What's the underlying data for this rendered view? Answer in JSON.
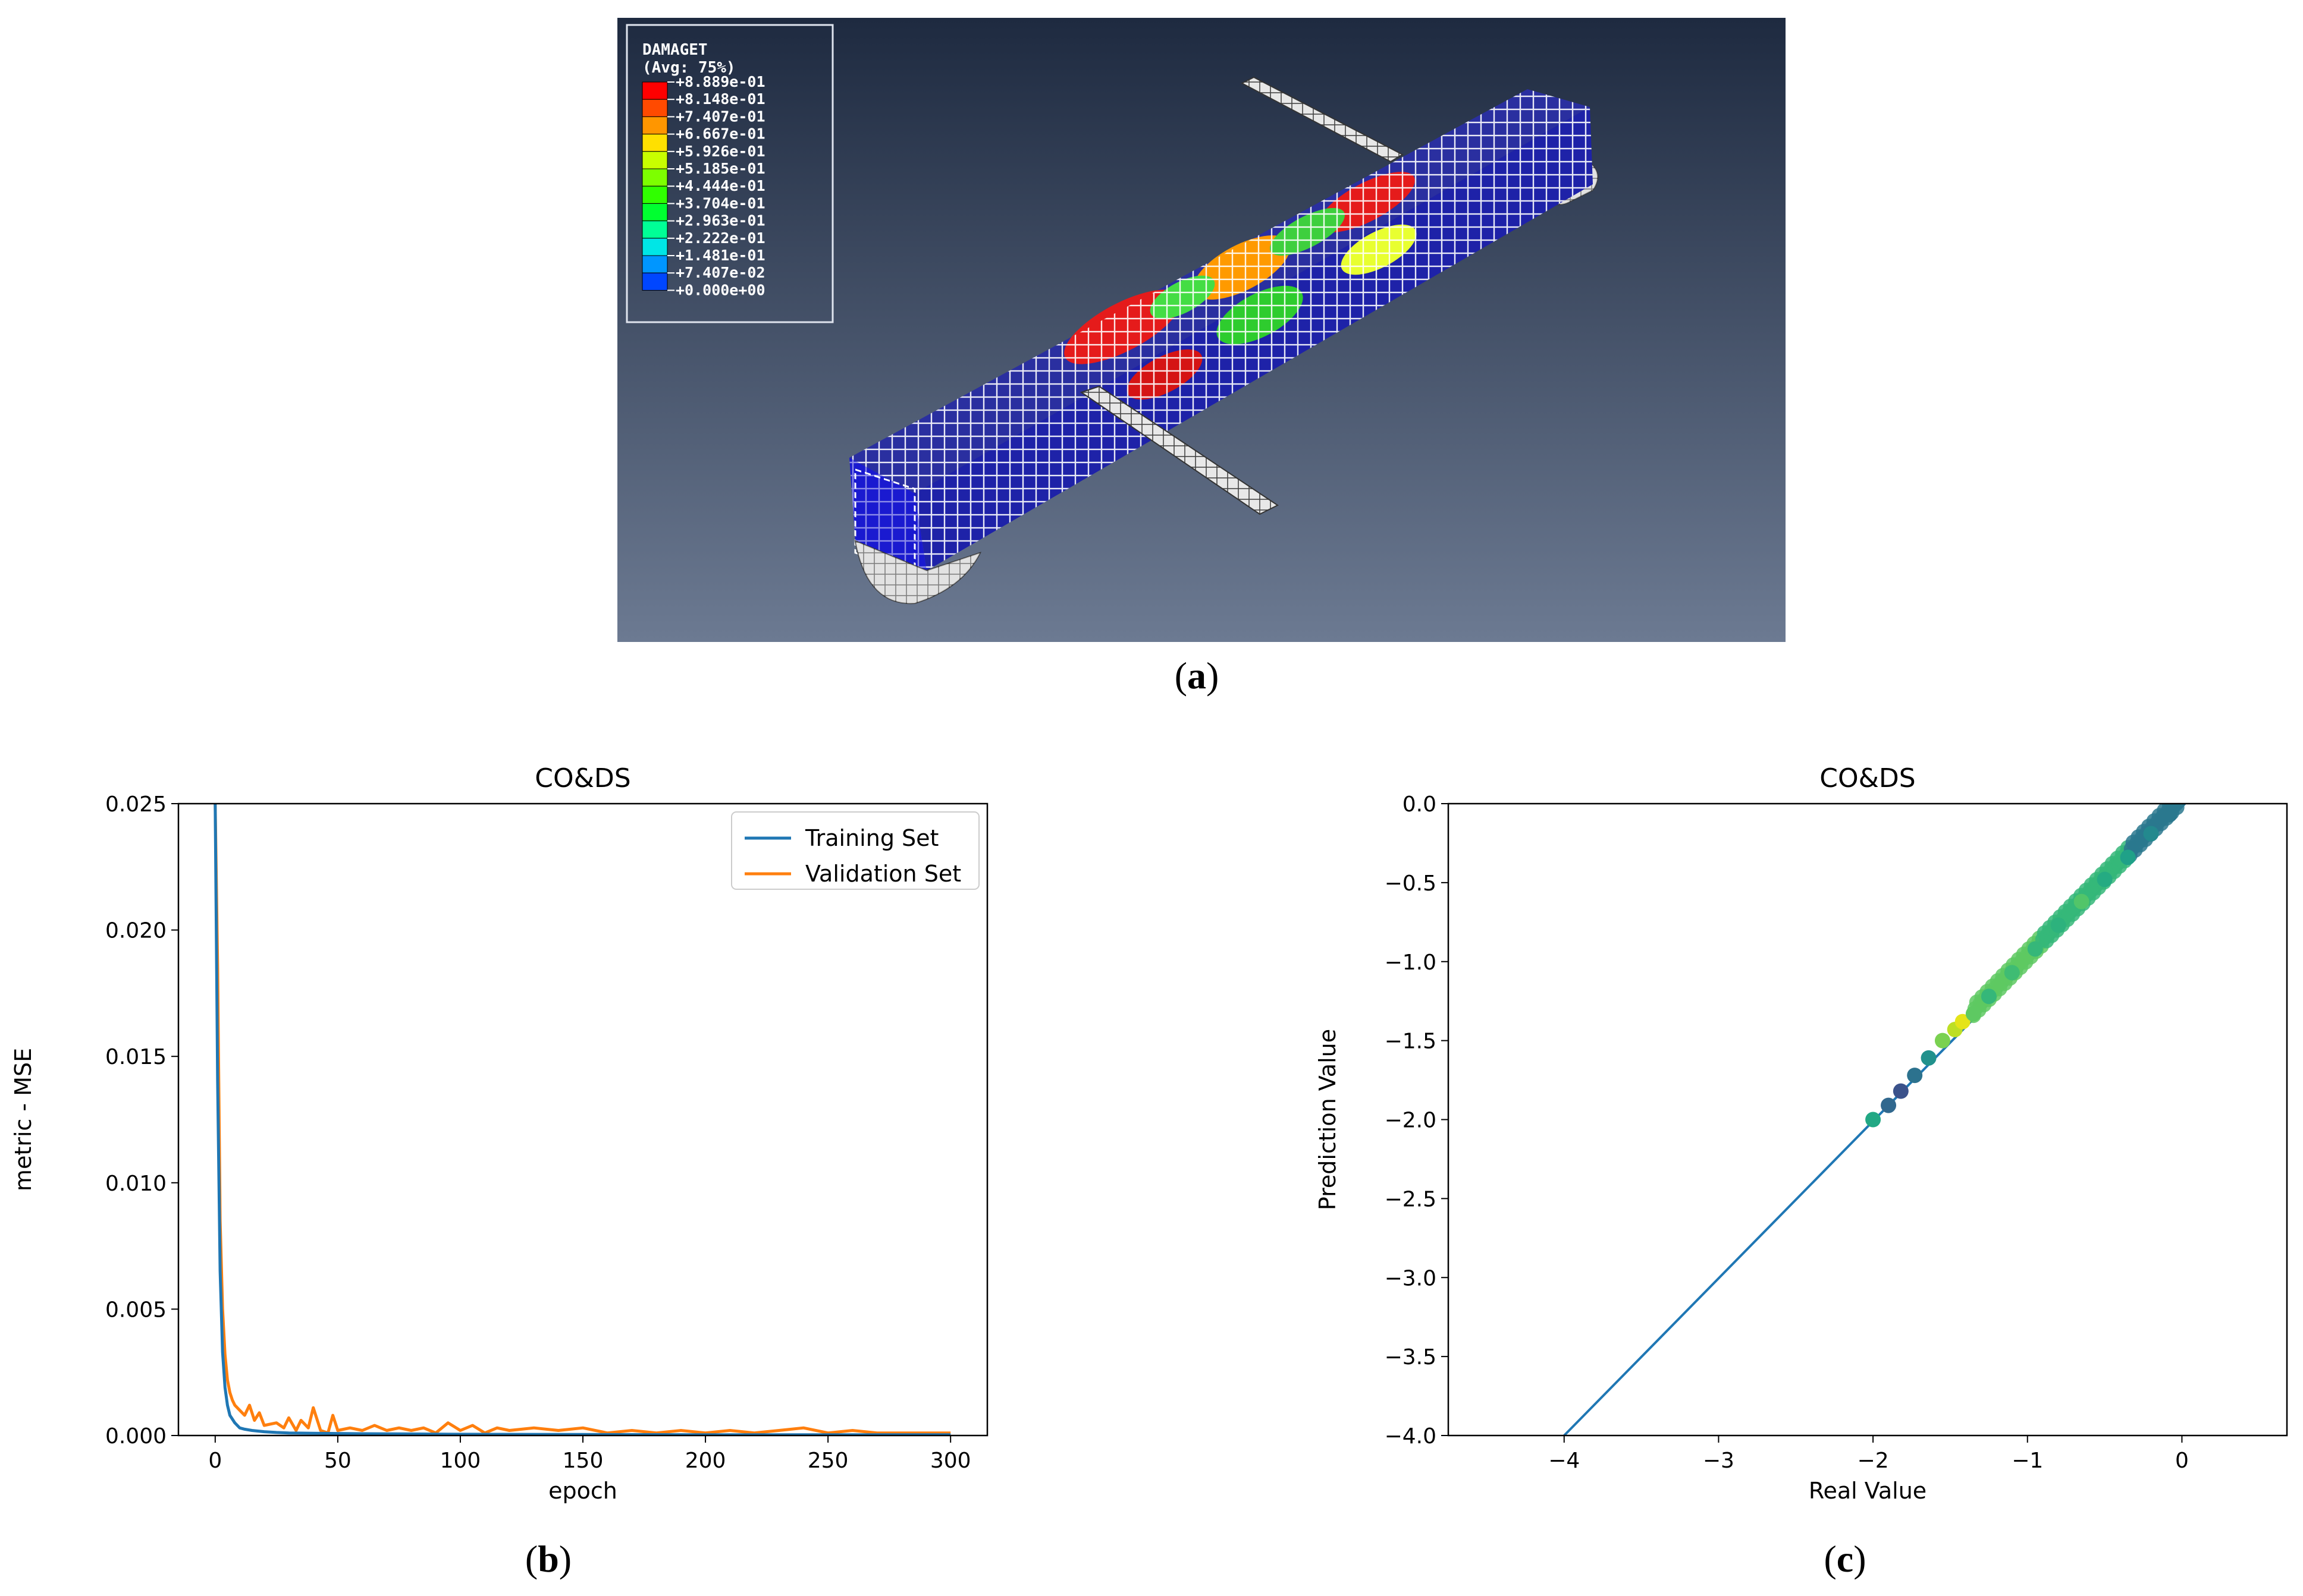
{
  "panel_a": {
    "caption_letter": "a",
    "legend": {
      "title": "DAMAGET",
      "subtitle": "(Avg: 75%)",
      "entries": [
        {
          "label": "+8.889e-01",
          "color": "#ff0000"
        },
        {
          "label": "+8.148e-01",
          "color": "#ff4a00"
        },
        {
          "label": "+7.407e-01",
          "color": "#ff9600"
        },
        {
          "label": "+6.667e-01",
          "color": "#ffe000"
        },
        {
          "label": "+5.926e-01",
          "color": "#c8ff00"
        },
        {
          "label": "+5.185e-01",
          "color": "#7dff00"
        },
        {
          "label": "+4.444e-01",
          "color": "#30ff00"
        },
        {
          "label": "+3.704e-01",
          "color": "#00ff30"
        },
        {
          "label": "+2.963e-01",
          "color": "#00ff96"
        },
        {
          "label": "+2.222e-01",
          "color": "#00e6e6"
        },
        {
          "label": "+1.481e-01",
          "color": "#0096ff"
        },
        {
          "label": "+7.407e-02",
          "color": "#0046ff"
        },
        {
          "label": "+0.000e+00",
          "color": "#0000e6"
        }
      ]
    },
    "background_top": "#1e2a40",
    "background_bottom": "#6c7a92"
  },
  "panel_b": {
    "caption_letter": "b"
  },
  "panel_c": {
    "caption_letter": "c"
  },
  "chart_data": [
    {
      "type": "line",
      "title": "CO&DS",
      "xlabel": "epoch",
      "ylabel": "metric - MSE",
      "xlim": [
        -15,
        315
      ],
      "ylim": [
        0,
        0.025
      ],
      "xticks": [
        0,
        50,
        100,
        150,
        200,
        250,
        300
      ],
      "yticks": [
        "0.000",
        "0.005",
        "0.010",
        "0.015",
        "0.020",
        "0.025"
      ],
      "legend_position": "top-right",
      "series": [
        {
          "name": "Training Set",
          "color": "#1f77b4",
          "x": [
            0,
            1,
            2,
            3,
            4,
            5,
            6,
            8,
            10,
            12,
            15,
            20,
            25,
            30,
            40,
            50,
            60,
            80,
            100,
            150,
            200,
            250,
            300
          ],
          "y": [
            0.025,
            0.014,
            0.0065,
            0.0033,
            0.0019,
            0.0012,
            0.0008,
            0.0005,
            0.0003,
            0.00025,
            0.0002,
            0.00015,
            0.00012,
            0.0001,
            9e-05,
            8e-05,
            7e-05,
            6e-05,
            5e-05,
            4e-05,
            3e-05,
            3e-05,
            3e-05
          ]
        },
        {
          "name": "Validation Set",
          "color": "#ff7f0e",
          "x": [
            0,
            1,
            2,
            3,
            4,
            5,
            6,
            7,
            8,
            10,
            12,
            14,
            16,
            18,
            20,
            25,
            28,
            30,
            33,
            35,
            38,
            40,
            43,
            46,
            48,
            50,
            55,
            60,
            65,
            70,
            75,
            80,
            85,
            90,
            95,
            100,
            105,
            110,
            115,
            120,
            130,
            140,
            150,
            160,
            170,
            180,
            190,
            200,
            210,
            220,
            230,
            240,
            250,
            260,
            270,
            280,
            290,
            300
          ],
          "y": [
            0.025,
            0.0185,
            0.0085,
            0.005,
            0.0032,
            0.0022,
            0.0017,
            0.0014,
            0.0012,
            0.001,
            0.0008,
            0.0012,
            0.0006,
            0.0009,
            0.0004,
            0.0005,
            0.0003,
            0.0007,
            0.0002,
            0.0006,
            0.0003,
            0.0011,
            0.0002,
            0.0001,
            0.0008,
            0.0002,
            0.0003,
            0.0002,
            0.0004,
            0.0002,
            0.0003,
            0.0002,
            0.0003,
            0.0001,
            0.0005,
            0.0002,
            0.0004,
            0.0001,
            0.0003,
            0.0002,
            0.0003,
            0.0002,
            0.0003,
            0.0001,
            0.0002,
            0.0001,
            0.0002,
            0.0001,
            0.0002,
            0.0001,
            0.0002,
            0.0003,
            0.0001,
            0.0002,
            0.0001,
            0.0001,
            0.0001,
            0.0001
          ]
        }
      ]
    },
    {
      "type": "scatter",
      "title": "CO&DS",
      "xlabel": "Real Value",
      "ylabel": "Prediction Value",
      "xlim": [
        -4.75,
        0.68
      ],
      "ylim": [
        -4.0,
        0.0
      ],
      "xticks": [
        "−4",
        "−3",
        "−2",
        "−1",
        "0"
      ],
      "xtick_values": [
        -4,
        -3,
        -2,
        -1,
        0
      ],
      "yticks": [
        "−4.0",
        "−3.5",
        "−3.0",
        "−2.5",
        "−2.0",
        "−1.5",
        "−1.0",
        "−0.5",
        "0.0"
      ],
      "ytick_values": [
        -4.0,
        -3.5,
        -3.0,
        -2.5,
        -2.0,
        -1.5,
        -1.0,
        -0.5,
        0.0
      ],
      "reference_line": {
        "x": [
          -4,
          0.02
        ],
        "y": [
          -4,
          0.0
        ],
        "color": "#1f77b4"
      },
      "points": [
        {
          "x": -2.0,
          "y": -2.0,
          "color": "#22a884"
        },
        {
          "x": -1.9,
          "y": -1.91,
          "color": "#31688e"
        },
        {
          "x": -1.82,
          "y": -1.82,
          "color": "#3b528b"
        },
        {
          "x": -1.73,
          "y": -1.72,
          "color": "#2c728e"
        },
        {
          "x": -1.64,
          "y": -1.61,
          "color": "#21918c"
        },
        {
          "x": -1.55,
          "y": -1.5,
          "color": "#7ad151"
        },
        {
          "x": -1.47,
          "y": -1.43,
          "color": "#bddf26"
        },
        {
          "x": -1.42,
          "y": -1.38,
          "color": "#e5e419"
        },
        {
          "x": -1.35,
          "y": -1.33,
          "color": "#5ec962"
        },
        {
          "x": -1.25,
          "y": -1.22,
          "color": "#35b779"
        },
        {
          "x": -1.1,
          "y": -1.07,
          "color": "#3fbc73"
        },
        {
          "x": -0.95,
          "y": -0.92,
          "color": "#35b779"
        },
        {
          "x": -0.8,
          "y": -0.77,
          "color": "#2db27d"
        },
        {
          "x": -0.65,
          "y": -0.62,
          "color": "#52c569"
        },
        {
          "x": -0.5,
          "y": -0.48,
          "color": "#25ab82"
        },
        {
          "x": -0.35,
          "y": -0.34,
          "color": "#1fa188"
        },
        {
          "x": -0.2,
          "y": -0.19,
          "color": "#23898e"
        },
        {
          "x": -0.08,
          "y": -0.07,
          "color": "#2a788e"
        }
      ]
    }
  ]
}
